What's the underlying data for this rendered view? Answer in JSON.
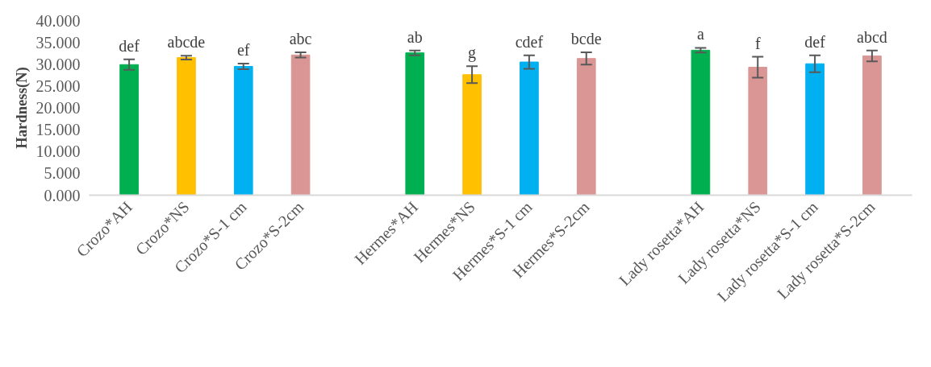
{
  "chart_data": {
    "type": "bar",
    "ylabel": "Hardness(N)",
    "categories": [
      "Crozo*AH",
      "Crozo*NS",
      "Crozo*S-1 cm",
      "Crozo*S-2cm",
      null,
      "Hermes*AH",
      "Hermes*NS",
      "Hermes*S-1 cm",
      "Hermes*S-2cm",
      null,
      "Lady rosetta*AH",
      "Lady rosetta*NS",
      "Lady rosetta*S-1 cm",
      "Lady rosetta*S-2cm"
    ],
    "values": [
      29.9,
      31.5,
      29.5,
      32.1,
      null,
      32.6,
      27.6,
      30.5,
      31.3,
      null,
      33.2,
      29.3,
      30.1,
      31.9
    ],
    "errors": [
      1.2,
      0.45,
      0.65,
      0.6,
      null,
      0.55,
      1.95,
      1.55,
      1.4,
      null,
      0.55,
      2.4,
      1.95,
      1.25
    ],
    "colors": [
      "#00b050",
      "#ffc000",
      "#00b0f0",
      "#da9694",
      null,
      "#00b050",
      "#ffc000",
      "#00b0f0",
      "#da9694",
      null,
      "#00b050",
      "#da9694",
      "#00b0f0",
      "#da9694"
    ],
    "value_labels": [
      "def",
      "abcde",
      "ef",
      "abc",
      null,
      "ab",
      "g",
      "cdef",
      "bcde",
      null,
      "a",
      "f",
      "def",
      "abcd"
    ],
    "ylim": [
      0,
      40
    ],
    "yticks": [
      {
        "value": 0,
        "label": "0.000"
      },
      {
        "value": 5,
        "label": "5.000"
      },
      {
        "value": 10,
        "label": "10.000"
      },
      {
        "value": 15,
        "label": "15.000"
      },
      {
        "value": 20,
        "label": "20.000"
      },
      {
        "value": 25,
        "label": "25.000"
      },
      {
        "value": 30,
        "label": "30.000"
      },
      {
        "value": 35,
        "label": "35.000"
      },
      {
        "value": 40,
        "label": "40.000"
      }
    ],
    "grid": false
  }
}
